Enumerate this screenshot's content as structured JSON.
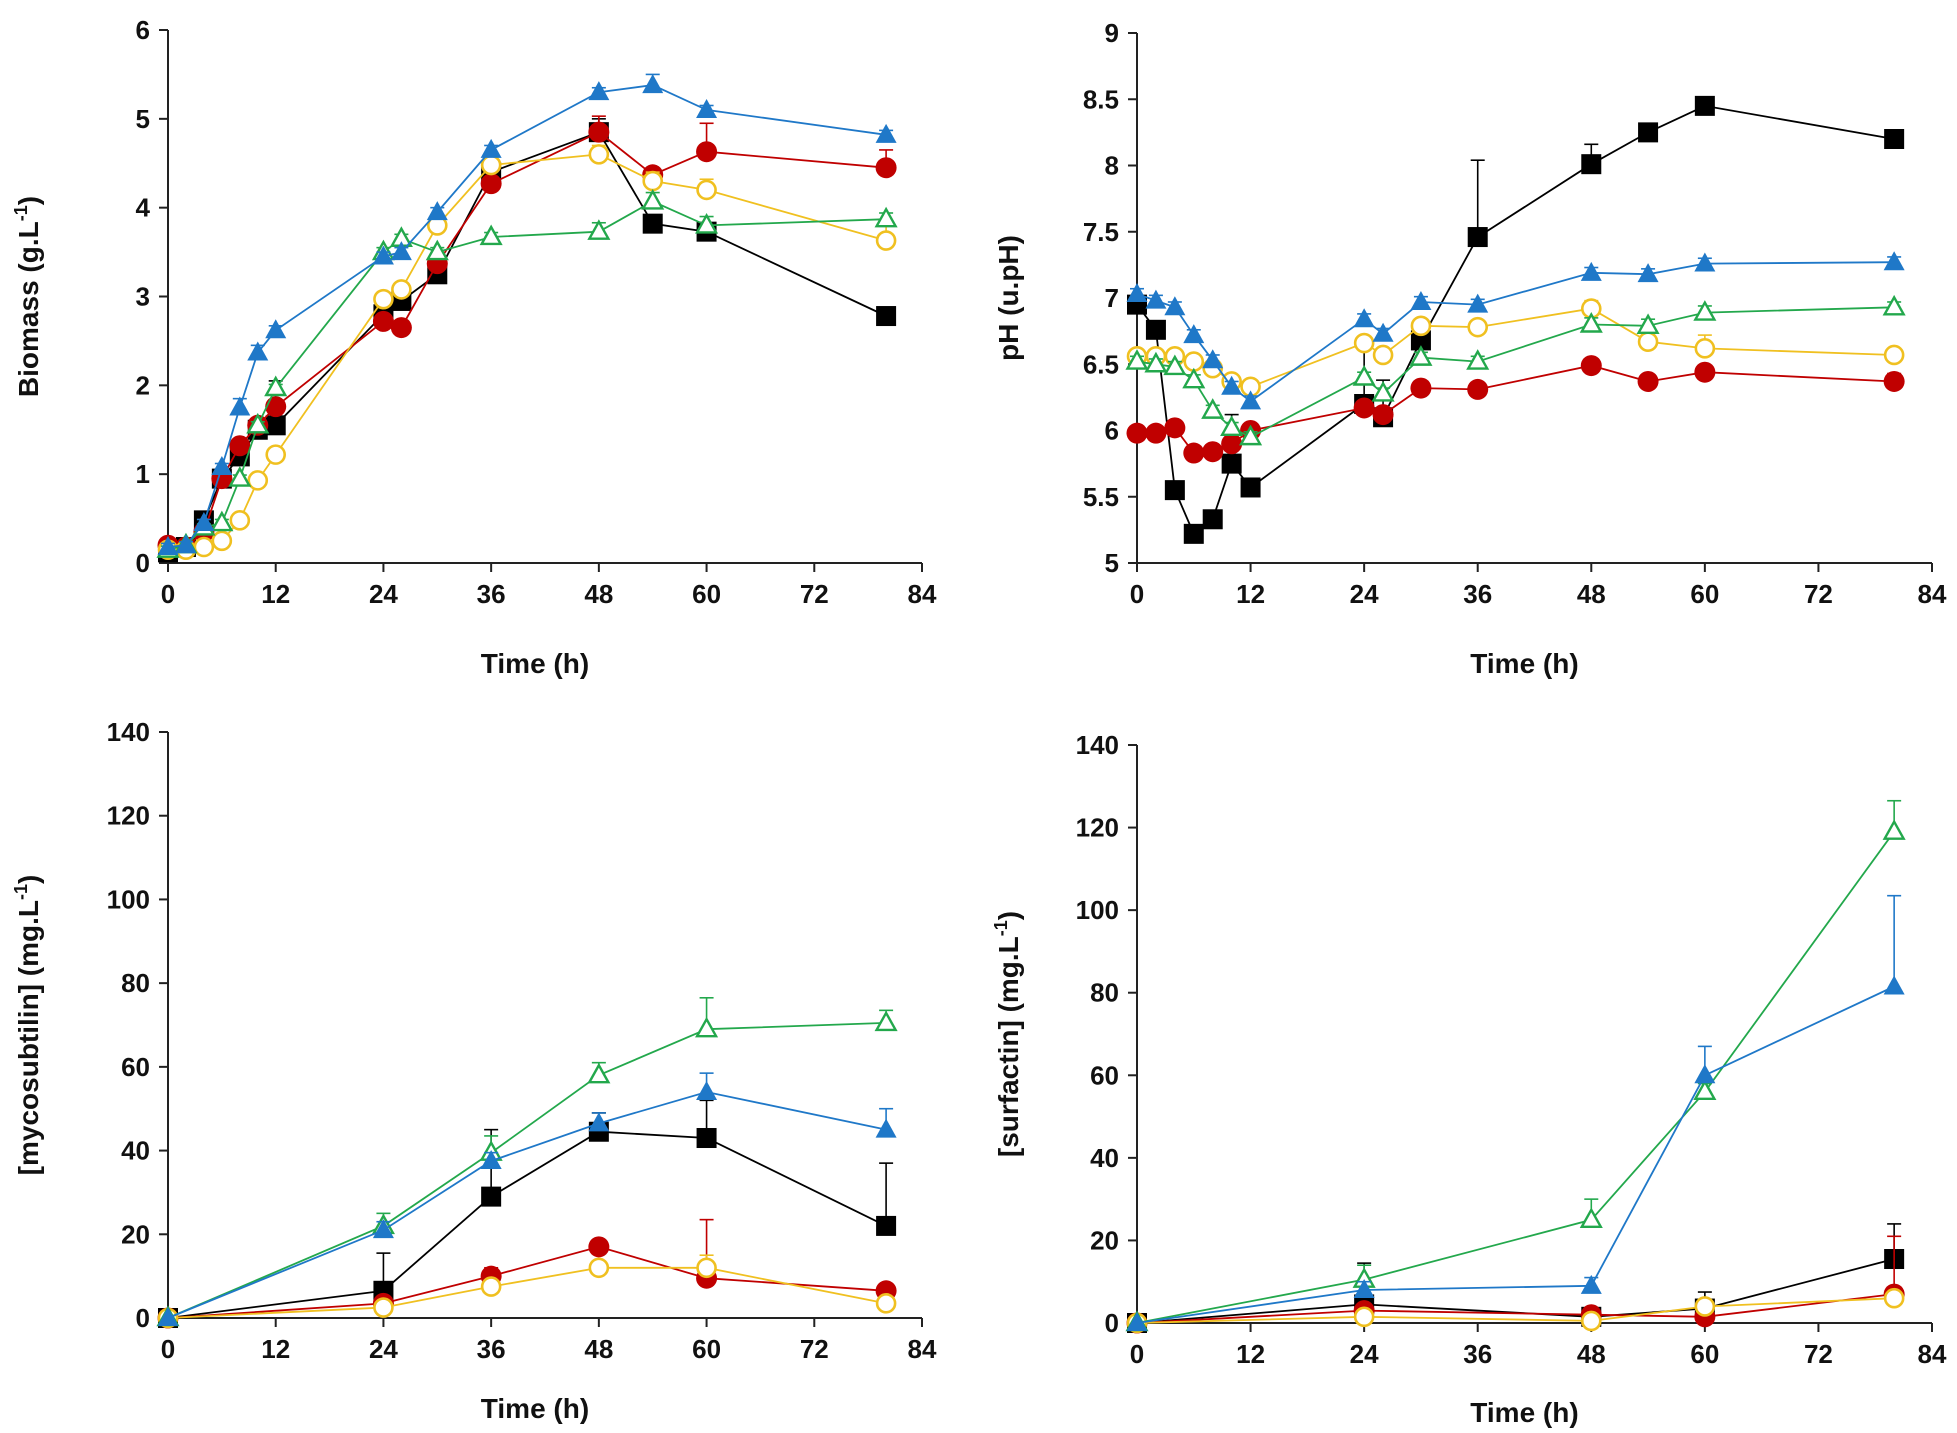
{
  "colors": {
    "black": "#000000",
    "red": "#c00000",
    "yellow": "#f0c020",
    "green": "#23a84c",
    "blue": "#1f78c8"
  },
  "chart_data": [
    {
      "id": "biomass",
      "type": "line",
      "xlabel": "Time (h)",
      "ylabel": "Biomass (g.L",
      "ylabel_sup": "-1",
      "ylabel_tail": ")",
      "xlim": [
        0,
        84
      ],
      "ylim": [
        0,
        6
      ],
      "xticks": [
        0,
        12,
        24,
        36,
        48,
        60,
        72,
        84
      ],
      "yticks": [
        0,
        1,
        2,
        3,
        4,
        5,
        6
      ],
      "series": [
        {
          "color": "black",
          "marker": "square",
          "x": [
            0,
            2,
            4,
            6,
            8,
            10,
            12,
            24,
            26,
            30,
            36,
            48,
            54,
            60,
            80
          ],
          "y": [
            0.12,
            0.18,
            0.48,
            0.95,
            1.2,
            1.5,
            1.55,
            2.8,
            2.95,
            3.25,
            4.4,
            4.85,
            3.82,
            3.73,
            2.78
          ],
          "err": [
            0.05,
            0.05,
            0.05,
            0.08,
            0.08,
            0.08,
            0.5,
            0.1,
            0.1,
            0.1,
            0.1,
            0.15,
            0.05,
            0.05,
            0.05
          ]
        },
        {
          "color": "red",
          "marker": "circle",
          "x": [
            0,
            2,
            4,
            6,
            8,
            10,
            12,
            24,
            26,
            30,
            36,
            48,
            54,
            60,
            80
          ],
          "y": [
            0.2,
            0.18,
            0.35,
            0.95,
            1.32,
            1.55,
            1.76,
            2.72,
            2.65,
            3.37,
            4.27,
            4.85,
            4.37,
            4.63,
            4.45
          ],
          "err": [
            0.05,
            0.05,
            0.05,
            0.05,
            0.05,
            0.05,
            0.05,
            0.05,
            0.05,
            0.05,
            0.05,
            0.18,
            0.05,
            0.32,
            0.2
          ]
        },
        {
          "color": "yellow",
          "marker": "circle-open",
          "x": [
            0,
            2,
            4,
            6,
            8,
            10,
            12,
            24,
            26,
            30,
            36,
            48,
            54,
            60,
            80
          ],
          "y": [
            0.15,
            0.15,
            0.18,
            0.25,
            0.48,
            0.93,
            1.22,
            2.97,
            3.08,
            3.8,
            4.48,
            4.6,
            4.3,
            4.2,
            3.63
          ],
          "err": [
            0.04,
            0.04,
            0.04,
            0.04,
            0.04,
            0.04,
            0.04,
            0.05,
            0.05,
            0.05,
            0.05,
            0.1,
            0.1,
            0.12,
            0.22
          ]
        },
        {
          "color": "green",
          "marker": "triangle-open",
          "x": [
            0,
            2,
            4,
            6,
            8,
            10,
            12,
            24,
            26,
            30,
            36,
            48,
            54,
            60,
            80
          ],
          "y": [
            0.15,
            0.2,
            0.4,
            0.45,
            0.95,
            1.55,
            1.97,
            3.5,
            3.65,
            3.5,
            3.67,
            3.73,
            4.07,
            3.8,
            3.87
          ],
          "err": [
            0.04,
            0.04,
            0.04,
            0.04,
            0.04,
            0.04,
            0.04,
            0.05,
            0.05,
            0.05,
            0.05,
            0.1,
            0.1,
            0.1,
            0.07
          ]
        },
        {
          "color": "blue",
          "marker": "triangle",
          "x": [
            0,
            2,
            4,
            6,
            8,
            10,
            12,
            24,
            26,
            30,
            36,
            48,
            54,
            60,
            80
          ],
          "y": [
            0.18,
            0.2,
            0.45,
            1.08,
            1.75,
            2.37,
            2.62,
            3.45,
            3.5,
            3.95,
            4.65,
            5.3,
            5.38,
            5.1,
            4.82
          ],
          "err": [
            0.04,
            0.04,
            0.04,
            0.04,
            0.1,
            0.08,
            0.05,
            0.05,
            0.05,
            0.05,
            0.05,
            0.05,
            0.12,
            0.05,
            0.05
          ]
        }
      ]
    },
    {
      "id": "ph",
      "type": "line",
      "xlabel": "Time (h)",
      "ylabel": "pH (u.pH)",
      "ylabel_sup": "",
      "ylabel_tail": "",
      "xlim": [
        0,
        84
      ],
      "ylim": [
        5,
        9
      ],
      "xticks": [
        0,
        12,
        24,
        36,
        48,
        60,
        72,
        84
      ],
      "yticks": [
        5,
        5.5,
        6,
        6.5,
        7,
        7.5,
        8,
        8.5,
        9
      ],
      "series": [
        {
          "color": "black",
          "marker": "square",
          "x": [
            0,
            2,
            4,
            6,
            8,
            10,
            12,
            24,
            26,
            30,
            36,
            48,
            54,
            60,
            80
          ],
          "y": [
            6.95,
            6.76,
            5.55,
            5.22,
            5.33,
            5.75,
            5.57,
            6.2,
            6.1,
            6.68,
            7.46,
            8.01,
            8.25,
            8.45,
            8.2
          ],
          "err": [
            0.05,
            0.05,
            0.05,
            0.05,
            0.05,
            0.37,
            0.05,
            0.42,
            0.28,
            0.1,
            0.58,
            0.15,
            0.05,
            0.05,
            0.05
          ]
        },
        {
          "color": "red",
          "marker": "circle",
          "x": [
            0,
            2,
            4,
            6,
            8,
            10,
            12,
            24,
            26,
            30,
            36,
            48,
            54,
            60,
            80
          ],
          "y": [
            5.98,
            5.98,
            6.02,
            5.83,
            5.84,
            5.9,
            6.0,
            6.17,
            6.12,
            6.32,
            6.31,
            6.49,
            6.37,
            6.44,
            6.37
          ],
          "err": [
            0.04,
            0.04,
            0.04,
            0.04,
            0.04,
            0.04,
            0.04,
            0.04,
            0.04,
            0.04,
            0.04,
            0.04,
            0.04,
            0.04,
            0.06
          ]
        },
        {
          "color": "yellow",
          "marker": "circle-open",
          "x": [
            0,
            2,
            4,
            6,
            8,
            10,
            12,
            24,
            26,
            30,
            36,
            48,
            54,
            60,
            80
          ],
          "y": [
            6.56,
            6.56,
            6.56,
            6.52,
            6.47,
            6.37,
            6.33,
            6.66,
            6.57,
            6.79,
            6.78,
            6.92,
            6.67,
            6.62,
            6.57
          ],
          "err": [
            0.04,
            0.04,
            0.04,
            0.04,
            0.04,
            0.04,
            0.04,
            0.04,
            0.04,
            0.04,
            0.04,
            0.06,
            0.06,
            0.1,
            0.04
          ]
        },
        {
          "color": "green",
          "marker": "triangle-open",
          "x": [
            0,
            2,
            4,
            6,
            8,
            10,
            12,
            24,
            26,
            30,
            36,
            48,
            54,
            60,
            80
          ],
          "y": [
            6.52,
            6.5,
            6.48,
            6.38,
            6.15,
            6.02,
            5.95,
            6.4,
            6.28,
            6.55,
            6.52,
            6.8,
            6.79,
            6.89,
            6.93
          ],
          "err": [
            0.04,
            0.04,
            0.04,
            0.04,
            0.04,
            0.04,
            0.04,
            0.04,
            0.04,
            0.04,
            0.04,
            0.05,
            0.05,
            0.05,
            0.04
          ]
        },
        {
          "color": "blue",
          "marker": "triangle",
          "x": [
            0,
            2,
            4,
            6,
            8,
            10,
            12,
            24,
            26,
            30,
            36,
            48,
            54,
            60,
            80
          ],
          "y": [
            7.03,
            6.98,
            6.93,
            6.72,
            6.53,
            6.33,
            6.22,
            6.84,
            6.73,
            6.97,
            6.95,
            7.19,
            7.18,
            7.26,
            7.27
          ],
          "err": [
            0.04,
            0.04,
            0.04,
            0.04,
            0.04,
            0.04,
            0.04,
            0.04,
            0.04,
            0.04,
            0.04,
            0.04,
            0.04,
            0.04,
            0.04
          ]
        }
      ]
    },
    {
      "id": "mycosubtilin",
      "type": "line",
      "xlabel": "Time (h)",
      "ylabel": "[mycosubtilin] (mg.L",
      "ylabel_sup": "-1",
      "ylabel_tail": ")",
      "xlim": [
        0,
        84
      ],
      "ylim": [
        0,
        140
      ],
      "xticks": [
        0,
        12,
        24,
        36,
        48,
        60,
        72,
        84
      ],
      "yticks": [
        0,
        20,
        40,
        60,
        80,
        100,
        120,
        140
      ],
      "series": [
        {
          "color": "black",
          "marker": "square",
          "x": [
            0,
            24,
            36,
            48,
            60,
            80
          ],
          "y": [
            0,
            6.5,
            29,
            44.5,
            43,
            22
          ],
          "err": [
            0,
            9,
            16,
            4.5,
            9,
            15
          ]
        },
        {
          "color": "red",
          "marker": "circle",
          "x": [
            0,
            24,
            36,
            48,
            60,
            80
          ],
          "y": [
            0,
            3.5,
            10,
            17,
            9.5,
            6.5
          ],
          "err": [
            0,
            1,
            2,
            1,
            14,
            1
          ]
        },
        {
          "color": "yellow",
          "marker": "circle-open",
          "x": [
            0,
            24,
            36,
            48,
            60,
            80
          ],
          "y": [
            0,
            2.5,
            7.5,
            12,
            12,
            3.5
          ],
          "err": [
            0,
            0.5,
            1,
            1,
            3,
            0.5
          ]
        },
        {
          "color": "green",
          "marker": "triangle-open",
          "x": [
            0,
            24,
            36,
            48,
            60,
            80
          ],
          "y": [
            0,
            22,
            39.5,
            58,
            69,
            70.5
          ],
          "err": [
            0,
            3,
            4,
            3,
            7.5,
            3
          ]
        },
        {
          "color": "blue",
          "marker": "triangle",
          "x": [
            0,
            24,
            36,
            48,
            60,
            80
          ],
          "y": [
            0,
            21,
            37.5,
            46.5,
            54,
            45
          ],
          "err": [
            0,
            2,
            2,
            2.5,
            4.5,
            5
          ]
        }
      ]
    },
    {
      "id": "surfactin",
      "type": "line",
      "xlabel": "Time (h)",
      "ylabel": "[surfactin] (mg.L",
      "ylabel_sup": "-1",
      "ylabel_tail": ")",
      "xlim": [
        0,
        84
      ],
      "ylim": [
        0,
        140
      ],
      "xticks": [
        0,
        12,
        24,
        36,
        48,
        60,
        72,
        84
      ],
      "yticks": [
        0,
        20,
        40,
        60,
        80,
        100,
        120,
        140
      ],
      "series": [
        {
          "color": "black",
          "marker": "square",
          "x": [
            0,
            24,
            48,
            60,
            80
          ],
          "y": [
            0,
            4.5,
            1.5,
            3.5,
            15.5
          ],
          "err": [
            0,
            10,
            1,
            4,
            8.5
          ]
        },
        {
          "color": "red",
          "marker": "circle",
          "x": [
            0,
            24,
            48,
            60,
            80
          ],
          "y": [
            0,
            3,
            2,
            1.5,
            7
          ],
          "err": [
            0,
            1,
            1,
            1,
            14
          ]
        },
        {
          "color": "yellow",
          "marker": "circle-open",
          "x": [
            0,
            24,
            48,
            60,
            80
          ],
          "y": [
            0,
            1.5,
            0.5,
            4,
            6
          ],
          "err": [
            0,
            0.5,
            0.5,
            0.5,
            1
          ]
        },
        {
          "color": "green",
          "marker": "triangle-open",
          "x": [
            0,
            24,
            48,
            60,
            80
          ],
          "y": [
            0,
            10.5,
            25,
            56,
            119
          ],
          "err": [
            0,
            3.5,
            5,
            2,
            7.5
          ]
        },
        {
          "color": "blue",
          "marker": "triangle",
          "x": [
            0,
            24,
            48,
            60,
            80
          ],
          "y": [
            0,
            8,
            9,
            60,
            81.5
          ],
          "err": [
            0,
            2,
            2,
            7,
            22
          ]
        }
      ]
    }
  ]
}
